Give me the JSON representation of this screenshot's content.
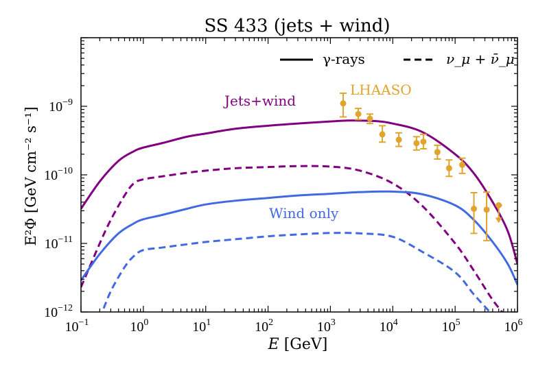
{
  "chart_data": {
    "type": "line",
    "title": "SS 433 (jets + wind)",
    "xlabel": {
      "var": "E",
      "unit": "[GeV]"
    },
    "ylabel": {
      "text": "E²Φ [GeV cm⁻² s⁻¹]"
    },
    "xscale": "log",
    "yscale": "log",
    "xlim": [
      0.1,
      1000000
    ],
    "ylim": [
      1e-12,
      1e-08
    ],
    "x_ticks": [
      {
        "value": 0.1,
        "base": "10",
        "exp": "−1"
      },
      {
        "value": 1,
        "base": "10",
        "exp": "0"
      },
      {
        "value": 10,
        "base": "10",
        "exp": "1"
      },
      {
        "value": 100,
        "base": "10",
        "exp": "2"
      },
      {
        "value": 1000,
        "base": "10",
        "exp": "3"
      },
      {
        "value": 10000,
        "base": "10",
        "exp": "4"
      },
      {
        "value": 100000,
        "base": "10",
        "exp": "5"
      },
      {
        "value": 1000000,
        "base": "10",
        "exp": "6"
      }
    ],
    "y_ticks": [
      {
        "value": 1e-12,
        "base": "10",
        "exp": "−12"
      },
      {
        "value": 1e-11,
        "base": "10",
        "exp": "−11"
      },
      {
        "value": 1e-10,
        "base": "10",
        "exp": "−10"
      },
      {
        "value": 1e-09,
        "base": "10",
        "exp": "−9"
      }
    ],
    "legend": {
      "position": "top-right",
      "entries": [
        {
          "label": "γ-rays",
          "style": "solid"
        },
        {
          "label": "ν_μ + ν̄_μ",
          "style": "dashed"
        }
      ]
    },
    "annotations": [
      {
        "text": "Jets+wind",
        "color": "#800080"
      },
      {
        "text": "Wind only",
        "color": "#4169e1"
      },
      {
        "text": "LHAASO",
        "color": "#e0a42f"
      }
    ],
    "series": [
      {
        "name": "Jets+wind γ-rays",
        "color": "#800080",
        "dash": "solid",
        "x": [
          0.1,
          0.2,
          0.4,
          0.7,
          1,
          2,
          5,
          10,
          30,
          100,
          300,
          1000,
          2000,
          5000,
          10000,
          30000,
          100000,
          200000,
          400000,
          700000,
          1000000
        ],
        "y": [
          3.2e-11,
          8e-11,
          1.6e-10,
          2.2e-10,
          2.5e-10,
          2.9e-10,
          3.6e-10,
          4e-10,
          4.7e-10,
          5.2e-10,
          5.6e-10,
          6e-10,
          6.2e-10,
          6.1e-10,
          5.6e-10,
          4.2e-10,
          2e-10,
          1.05e-10,
          4e-11,
          1.5e-11,
          5e-12
        ]
      },
      {
        "name": "Jets+wind ν_μ + ν̄_μ",
        "color": "#800080",
        "dash": "dashed",
        "x": [
          0.1,
          0.2,
          0.3,
          0.5,
          0.7,
          1,
          2,
          5,
          10,
          30,
          100,
          300,
          1000,
          3000,
          10000,
          30000,
          100000,
          200000,
          400000,
          700000
        ],
        "y": [
          2.3e-12,
          1e-11,
          2.2e-11,
          5e-11,
          7.5e-11,
          8.6e-11,
          9.5e-11,
          1.07e-10,
          1.15e-10,
          1.25e-10,
          1.3e-10,
          1.34e-10,
          1.32e-10,
          1.15e-10,
          7.5e-11,
          3.5e-11,
          1e-11,
          4e-12,
          1.5e-12,
          8e-13
        ]
      },
      {
        "name": "Wind only γ-rays",
        "color": "#4169e1",
        "dash": "solid",
        "x": [
          0.1,
          0.2,
          0.4,
          0.7,
          1,
          2,
          5,
          10,
          30,
          100,
          300,
          1000,
          3000,
          10000,
          30000,
          100000,
          200000,
          400000,
          700000,
          1000000
        ],
        "y": [
          2.9e-12,
          7e-12,
          1.4e-11,
          1.95e-11,
          2.25e-11,
          2.6e-11,
          3.2e-11,
          3.7e-11,
          4.2e-11,
          4.6e-11,
          5e-11,
          5.3e-11,
          5.6e-11,
          5.7e-11,
          5.2e-11,
          3.6e-11,
          2.2e-11,
          1.05e-11,
          5e-12,
          2.5e-12
        ]
      },
      {
        "name": "Wind only ν_μ + ν̄_μ",
        "color": "#4169e1",
        "dash": "dashed",
        "x": [
          0.2,
          0.3,
          0.5,
          0.7,
          1,
          2,
          5,
          10,
          30,
          100,
          300,
          1000,
          3000,
          10000,
          30000,
          100000,
          200000,
          400000
        ],
        "y": [
          8e-13,
          2e-12,
          4.5e-12,
          6.5e-12,
          8e-12,
          8.7e-12,
          9.7e-12,
          1.05e-11,
          1.15e-11,
          1.27e-11,
          1.35e-11,
          1.42e-11,
          1.4e-11,
          1.25e-11,
          7.5e-12,
          3.8e-12,
          1.8e-12,
          9e-13
        ]
      }
    ],
    "lhaaso": {
      "name": "LHAASO",
      "color": "#e0a42f",
      "points": [
        {
          "x": 1600,
          "y": 1.1e-09,
          "lo": 7e-10,
          "hi": 1.55e-09
        },
        {
          "x": 2800,
          "y": 7.7e-10,
          "lo": 6.4e-10,
          "hi": 9.3e-10
        },
        {
          "x": 4300,
          "y": 6.6e-10,
          "lo": 5.6e-10,
          "hi": 7.7e-10
        },
        {
          "x": 6800,
          "y": 3.9e-10,
          "lo": 3e-10,
          "hi": 5.2e-10
        },
        {
          "x": 12500,
          "y": 3.25e-10,
          "lo": 2.6e-10,
          "hi": 4.1e-10
        },
        {
          "x": 24000,
          "y": 2.9e-10,
          "lo": 2.3e-10,
          "hi": 3.6e-10
        },
        {
          "x": 31000,
          "y": 3.05e-10,
          "lo": 2.4e-10,
          "hi": 3.9e-10
        },
        {
          "x": 52000,
          "y": 2.15e-10,
          "lo": 1.7e-10,
          "hi": 2.7e-10
        },
        {
          "x": 80000,
          "y": 1.25e-10,
          "lo": 9.5e-11,
          "hi": 1.65e-10
        },
        {
          "x": 130000,
          "y": 1.4e-10,
          "lo": 1.05e-10,
          "hi": 1.75e-10
        },
        {
          "x": 200000,
          "y": 3.2e-11,
          "lo": 1.4e-11,
          "hi": 5.5e-11
        },
        {
          "x": 320000,
          "y": 3.1e-11,
          "lo": 1.1e-11,
          "hi": 5.6e-11
        },
        {
          "x": 500000,
          "y": 3.6e-11,
          "upper_limit": true
        }
      ]
    }
  }
}
